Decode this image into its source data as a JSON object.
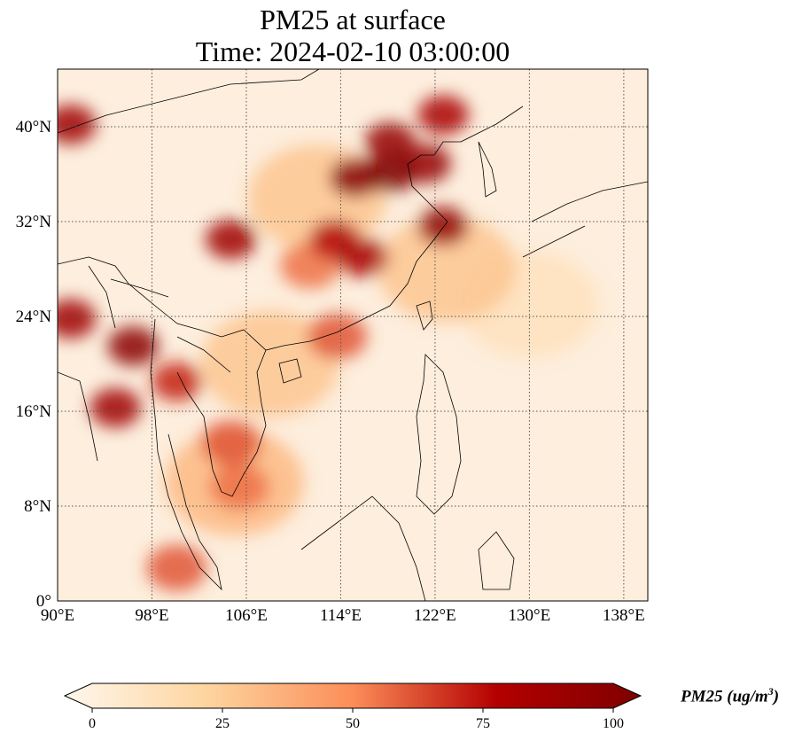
{
  "title": "PM25 at surface",
  "subtitle": "Time: 2024-02-10 03:00:00",
  "colorbar": {
    "label": "PM25 (ug/m³)",
    "label_main": "PM25 (ug/m",
    "label_sup": "3",
    "label_end": ")",
    "ticks": [
      "0",
      "25",
      "50",
      "75",
      "100"
    ],
    "range": [
      0,
      100
    ],
    "extend": "both",
    "colors": [
      "#fff7ec",
      "#fdd49e",
      "#fc8d59",
      "#b30000",
      "#7f0000"
    ]
  },
  "chart_data": {
    "type": "heatmap",
    "title": "PM25 at surface",
    "subtitle": "Time: 2024-02-10 03:00:00",
    "x_range_lon": [
      90,
      140
    ],
    "y_range_lat": [
      0,
      45
    ],
    "x_ticks": [
      "90°E",
      "98°E",
      "106°E",
      "114°E",
      "122°E",
      "130°E",
      "138°E"
    ],
    "x_tick_values": [
      90,
      98,
      106,
      114,
      122,
      130,
      138
    ],
    "y_ticks": [
      "0°",
      "8°N",
      "16°N",
      "24°N",
      "32°N",
      "40°N"
    ],
    "y_tick_values": [
      0,
      8,
      16,
      24,
      32,
      40
    ],
    "grid": true,
    "hotspots": [
      {
        "lon": 118.2,
        "lat": 36.1,
        "value": 100
      },
      {
        "lon": 115.2,
        "lat": 35.7,
        "value": 95
      },
      {
        "lon": 121.2,
        "lat": 36.9,
        "value": 90
      },
      {
        "lon": 118.2,
        "lat": 38.7,
        "value": 90
      },
      {
        "lon": 122.7,
        "lat": 31.6,
        "value": 90
      },
      {
        "lon": 104.7,
        "lat": 30.5,
        "value": 85
      },
      {
        "lon": 115.9,
        "lat": 29.0,
        "value": 80
      },
      {
        "lon": 113.5,
        "lat": 30.5,
        "value": 75
      },
      {
        "lon": 91.1,
        "lat": 40.2,
        "value": 85
      },
      {
        "lon": 122.7,
        "lat": 41.0,
        "value": 80
      },
      {
        "lon": 96.4,
        "lat": 21.5,
        "value": 95
      },
      {
        "lon": 91.1,
        "lat": 23.8,
        "value": 85
      },
      {
        "lon": 94.9,
        "lat": 16.3,
        "value": 85
      },
      {
        "lon": 100.1,
        "lat": 18.5,
        "value": 70
      },
      {
        "lon": 104.7,
        "lat": 13.3,
        "value": 60
      },
      {
        "lon": 105.4,
        "lat": 9.6,
        "value": 55
      },
      {
        "lon": 113.7,
        "lat": 22.3,
        "value": 60
      },
      {
        "lon": 100.1,
        "lat": 2.8,
        "value": 60
      },
      {
        "lon": 111.4,
        "lat": 28.3,
        "value": 55
      },
      {
        "lon": 108,
        "lat": 20,
        "value": 30
      },
      {
        "lon": 105,
        "lat": 10,
        "value": 35
      },
      {
        "lon": 123,
        "lat": 28,
        "value": 30
      },
      {
        "lon": 130,
        "lat": 25,
        "value": 15
      },
      {
        "lon": 112,
        "lat": 34,
        "value": 30
      }
    ]
  }
}
